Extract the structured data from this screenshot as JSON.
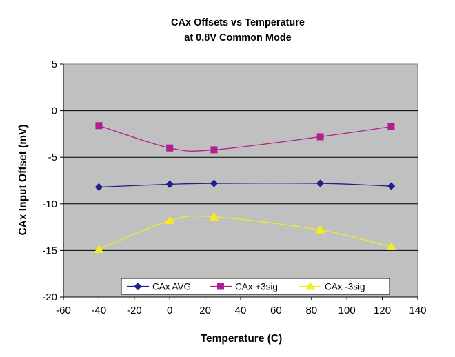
{
  "chart_data": {
    "type": "line",
    "title": [
      "CAx Offsets vs Temperature",
      "at 0.8V Common Mode"
    ],
    "xlabel": "Temperature (C)",
    "ylabel": "CAx Input Offset (mV)",
    "xlim": [
      -60,
      140
    ],
    "ylim": [
      -20,
      5
    ],
    "xticks": [
      -60,
      -40,
      -20,
      0,
      20,
      40,
      60,
      80,
      100,
      120,
      140
    ],
    "yticks": [
      5,
      0,
      -5,
      -10,
      -15,
      -20
    ],
    "grid": "horizontal",
    "legend_position": "bottom-center",
    "plot_background": "#c0c0c0",
    "series": [
      {
        "name": "CAx AVG",
        "color": "#1f1f8f",
        "marker": "diamond",
        "x": [
          -40,
          0,
          25,
          85,
          125
        ],
        "y": [
          -8.2,
          -7.9,
          -7.8,
          -7.8,
          -8.1
        ]
      },
      {
        "name": "CAx +3sig",
        "color": "#b01e8f",
        "marker": "square",
        "x": [
          -40,
          0,
          25,
          85,
          125
        ],
        "y": [
          -1.6,
          -4.0,
          -4.2,
          -2.8,
          -1.7
        ]
      },
      {
        "name": "CAx -3sig",
        "color": "#f2ee1f",
        "marker": "triangle",
        "x": [
          -40,
          0,
          25,
          85,
          125
        ],
        "y": [
          -14.9,
          -11.8,
          -11.4,
          -12.8,
          -14.6
        ]
      }
    ]
  }
}
